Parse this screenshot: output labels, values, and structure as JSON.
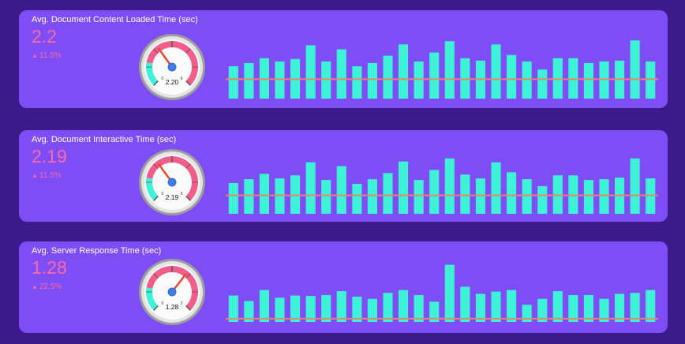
{
  "colors": {
    "background": "#3b1a8c",
    "panel": "#7e4df5",
    "accent_text": "#fb6aa7",
    "bar": "#3ef2d8",
    "reference_line": "#e8846a",
    "gauge_red": "#f25d8a",
    "gauge_teal": "#3ef2d8",
    "needle": "#e8452c"
  },
  "icons": {
    "change_up": "up-arrow-icon"
  },
  "panels": [
    {
      "title": "Avg. Document Content Loaded Time (sec)",
      "value": "2.2",
      "change": "11.5%",
      "gauge": {
        "value_label": "2.20",
        "value": 2.2,
        "min": 0,
        "max": 6,
        "min_label": "0",
        "max_label": "6"
      }
    },
    {
      "title": "Avg. Document Interactive Time (sec)",
      "value": "2.19",
      "change": "11.5%",
      "gauge": {
        "value_label": "2.19",
        "value": 2.19,
        "min": 0,
        "max": 6,
        "min_label": "0",
        "max_label": "6"
      }
    },
    {
      "title": "Avg. Server Response Time (sec)",
      "value": "1.28",
      "change": "22.5%",
      "gauge": {
        "value_label": "1.28",
        "value": 1.28,
        "min": 0,
        "max": 2,
        "min_label": "0",
        "max_label": "2"
      }
    }
  ],
  "chart_data": [
    {
      "type": "bar",
      "title": "Avg. Document Content Loaded Time (sec)",
      "values": [
        2.0,
        2.2,
        2.5,
        2.3,
        2.45,
        3.3,
        2.3,
        3.05,
        2.0,
        2.2,
        2.65,
        3.35,
        2.3,
        2.85,
        3.55,
        2.5,
        2.35,
        3.35,
        2.7,
        2.3,
        1.8,
        2.5,
        2.5,
        2.2,
        2.3,
        2.35,
        3.6,
        2.3
      ],
      "reference_value": 1.2,
      "ylim": [
        0,
        4
      ]
    },
    {
      "type": "bar",
      "title": "Avg. Document Interactive Time (sec)",
      "values": [
        2.0,
        2.25,
        2.6,
        2.3,
        2.5,
        3.35,
        2.2,
        3.1,
        1.95,
        2.25,
        2.65,
        3.4,
        2.2,
        2.85,
        3.6,
        2.55,
        2.3,
        3.35,
        2.7,
        2.25,
        1.8,
        2.5,
        2.5,
        2.2,
        2.25,
        2.35,
        3.6,
        2.3
      ],
      "reference_value": 1.2,
      "ylim": [
        0,
        4
      ]
    },
    {
      "type": "bar",
      "title": "Avg. Server Response Time (sec)",
      "values": [
        1.2,
        0.95,
        1.45,
        1.1,
        1.2,
        1.18,
        1.22,
        1.4,
        1.15,
        1.05,
        1.32,
        1.45,
        1.22,
        0.92,
        2.6,
        1.6,
        1.28,
        1.38,
        1.45,
        0.78,
        1.05,
        1.4,
        1.22,
        1.22,
        1.05,
        1.28,
        1.32,
        1.45
      ],
      "reference_value": 0.15,
      "ylim": [
        0,
        2.8
      ]
    }
  ]
}
